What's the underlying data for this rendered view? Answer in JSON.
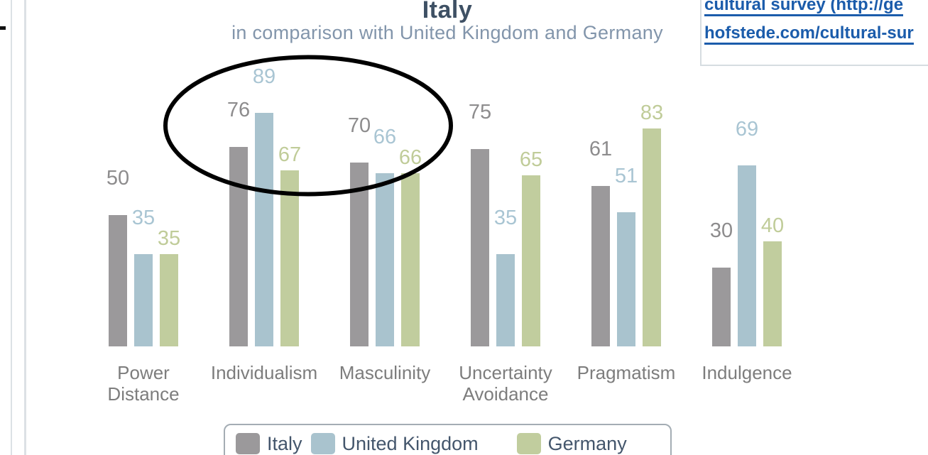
{
  "link_panel": {
    "line1": "cultural survey (http://ge",
    "line2": "hofstede.com/cultural-sur"
  },
  "chart_data": {
    "type": "bar",
    "title": "Italy",
    "subtitle": "in comparison with United Kingdom and Germany",
    "categories": [
      "Power Distance",
      "Individualism",
      "Masculinity",
      "Uncertainty Avoidance",
      "Pragmatism",
      "Indulgence"
    ],
    "series": [
      {
        "name": "Italy",
        "color": "#9b999b",
        "label_color": "#8d8c8d",
        "values": [
          50,
          76,
          70,
          75,
          61,
          30
        ]
      },
      {
        "name": "United Kingdom",
        "color": "#a9c3ce",
        "label_color": "#a9c5d3",
        "values": [
          35,
          89,
          66,
          35,
          51,
          69
        ]
      },
      {
        "name": "Germany",
        "color": "#c1cd9e",
        "label_color": "#c0cc99",
        "values": [
          35,
          67,
          66,
          65,
          83,
          40
        ]
      }
    ],
    "ylim": [
      0,
      100
    ],
    "grid": false,
    "value_labels": true,
    "legend_position": "bottom",
    "annotation": {
      "type": "ellipse",
      "note": "hand-drawn black ellipse circling the Individualism group"
    }
  },
  "colors": {
    "title": "#3e5064",
    "subtitle": "#8295ab",
    "category_label": "#7d7d7d",
    "legend_text": "#44566c",
    "link": "#1b5cab",
    "annotation": "#000000",
    "page_lines": "#dce1e5"
  }
}
